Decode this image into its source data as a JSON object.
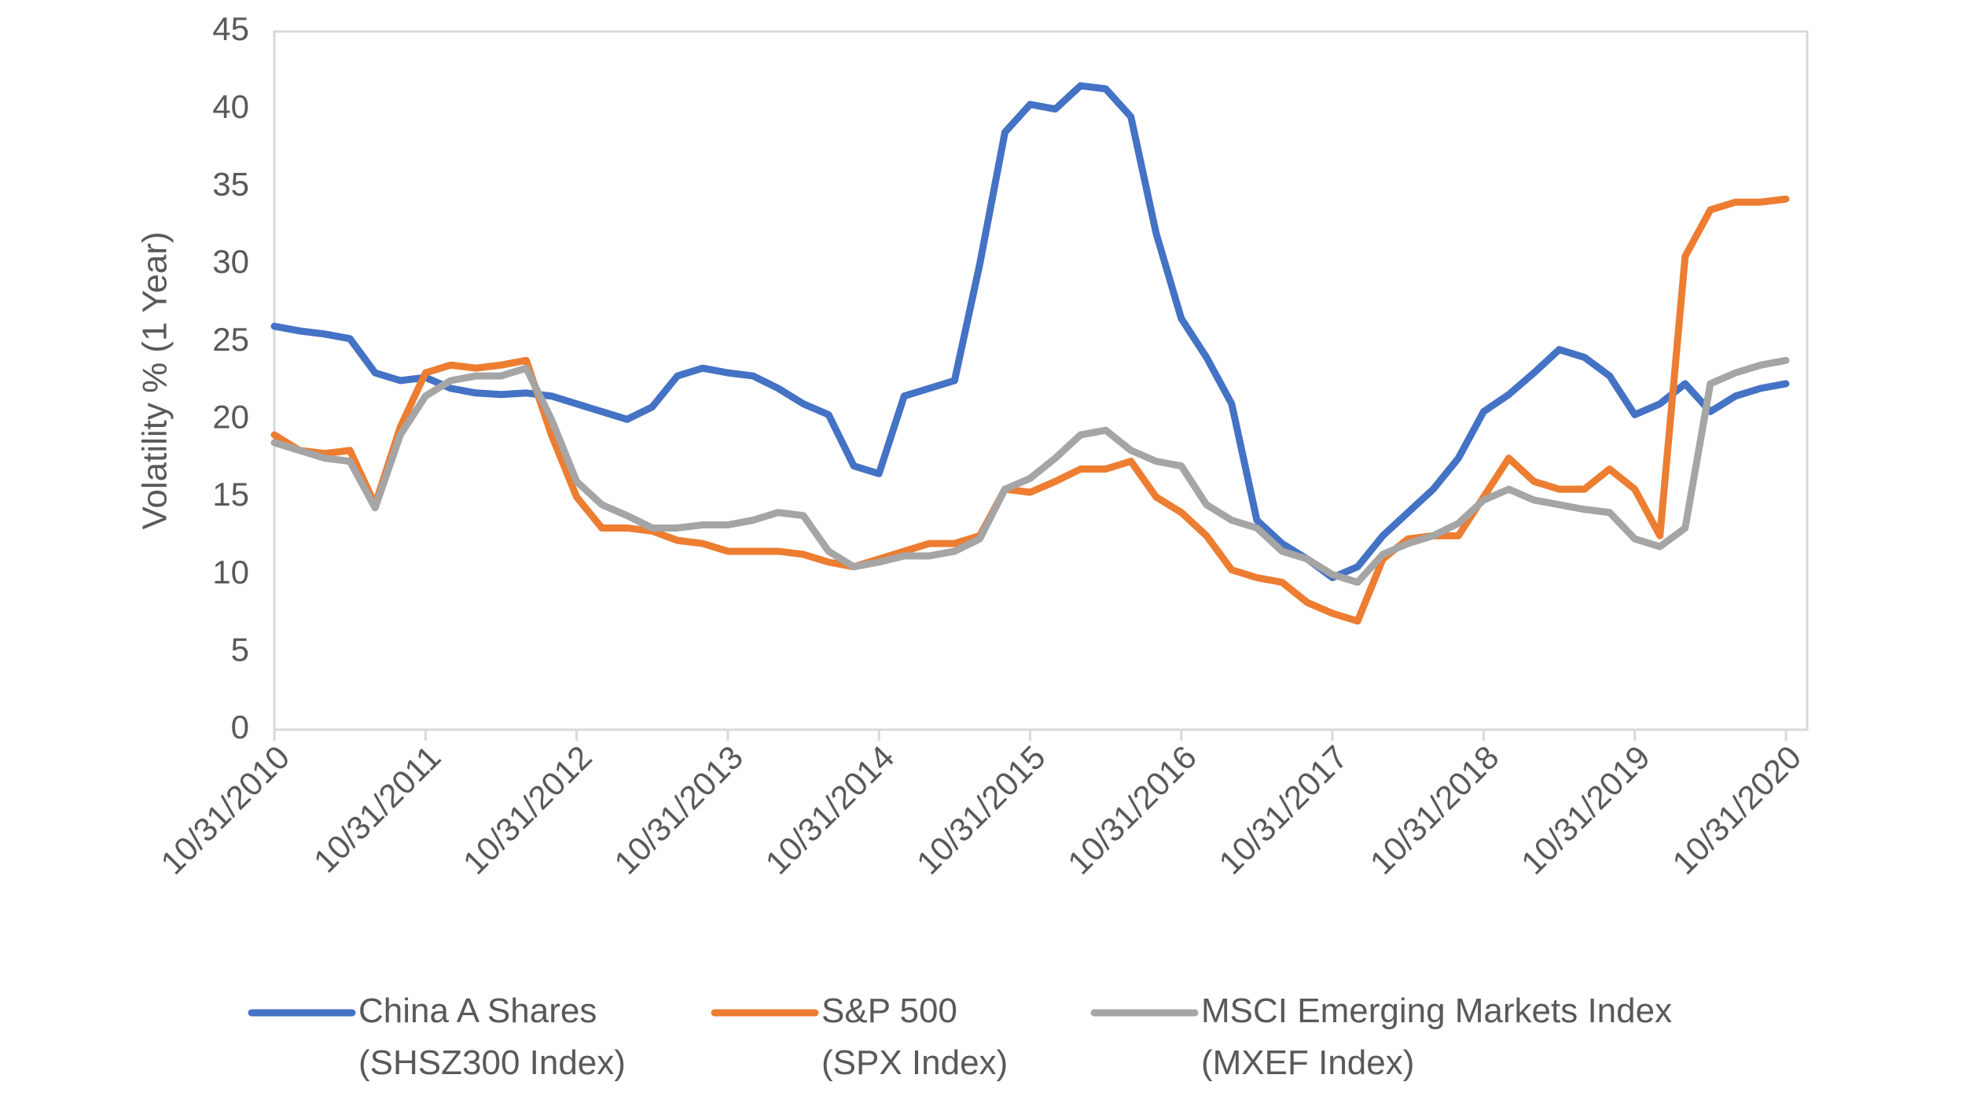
{
  "chart_data": {
    "type": "line",
    "y_label": "Volatility % (1 Year)",
    "categories": [
      "10/31/2010",
      null,
      null,
      null,
      null,
      null,
      "10/31/2011",
      null,
      null,
      null,
      null,
      null,
      "10/31/2012",
      null,
      null,
      null,
      null,
      null,
      "10/31/2013",
      null,
      null,
      null,
      null,
      null,
      "10/31/2014",
      null,
      null,
      null,
      null,
      null,
      "10/31/2015",
      null,
      null,
      null,
      null,
      null,
      "10/31/2016",
      null,
      null,
      null,
      null,
      null,
      "10/31/2017",
      null,
      null,
      null,
      null,
      null,
      "10/31/2018",
      null,
      null,
      null,
      null,
      null,
      "10/31/2019",
      null,
      null,
      null,
      null,
      null,
      "10/31/2020"
    ],
    "series": [
      {
        "name": "China A Shares\n(SHSZ300 Index)",
        "color": "#4472c4",
        "values": [
          26,
          25.7,
          25.5,
          25.2,
          23,
          22.5,
          22.7,
          22,
          21.7,
          21.6,
          21.7,
          21.5,
          21,
          20.5,
          20,
          20.8,
          22.8,
          23.3,
          23,
          22.8,
          22,
          21,
          20.3,
          17,
          16.5,
          21.5,
          22,
          22.5,
          30,
          38.5,
          40.3,
          40,
          41.5,
          41.3,
          39.5,
          32,
          26.5,
          24,
          21,
          13.5,
          12,
          11,
          9.8,
          10.5,
          12.5,
          14,
          15.5,
          17.5,
          20.5,
          21.6,
          23,
          24.5,
          24,
          22.8,
          20.3,
          21,
          22.3,
          20.5,
          21.5,
          22,
          22.3
        ]
      },
      {
        "name": "S&P 500\n(SPX Index)",
        "color": "#ed7d31",
        "values": [
          19,
          18,
          17.8,
          18,
          14.5,
          19.5,
          23,
          23.5,
          23.3,
          23.5,
          23.8,
          19,
          15,
          13,
          13,
          12.8,
          12.2,
          12,
          11.5,
          11.5,
          11.5,
          11.3,
          10.8,
          10.5,
          11,
          11.5,
          12,
          12,
          12.5,
          15.5,
          15.3,
          16,
          16.8,
          16.8,
          17.3,
          15,
          14,
          12.5,
          10.3,
          9.8,
          9.5,
          8.2,
          7.5,
          7,
          11,
          12.3,
          12.5,
          12.5,
          15,
          17.5,
          16,
          15.5,
          15.5,
          16.8,
          15.5,
          12.5,
          30.5,
          33.5,
          34,
          34,
          34.2
        ]
      },
      {
        "name": "MSCI Emerging Markets Index\n(MXEF Index)",
        "color": "#a5a5a5",
        "values": [
          18.5,
          18,
          17.5,
          17.3,
          14.3,
          19,
          21.5,
          22.5,
          22.8,
          22.8,
          23.3,
          20,
          16,
          14.5,
          13.8,
          13,
          13,
          13.2,
          13.2,
          13.5,
          14,
          13.8,
          11.5,
          10.5,
          10.8,
          11.2,
          11.2,
          11.5,
          12.3,
          15.5,
          16.2,
          17.5,
          19,
          19.3,
          18,
          17.3,
          17,
          14.5,
          13.5,
          13,
          11.5,
          11,
          10,
          9.5,
          11.3,
          12,
          12.5,
          13.3,
          14.8,
          15.5,
          14.8,
          14.5,
          14.2,
          14,
          12.3,
          11.8,
          13,
          22.3,
          23,
          23.5,
          23.8
        ]
      }
    ],
    "ylim": [
      0,
      45
    ],
    "yticks": [
      0,
      5,
      10,
      15,
      20,
      25,
      30,
      35,
      40,
      45
    ],
    "legend": "bottom"
  }
}
